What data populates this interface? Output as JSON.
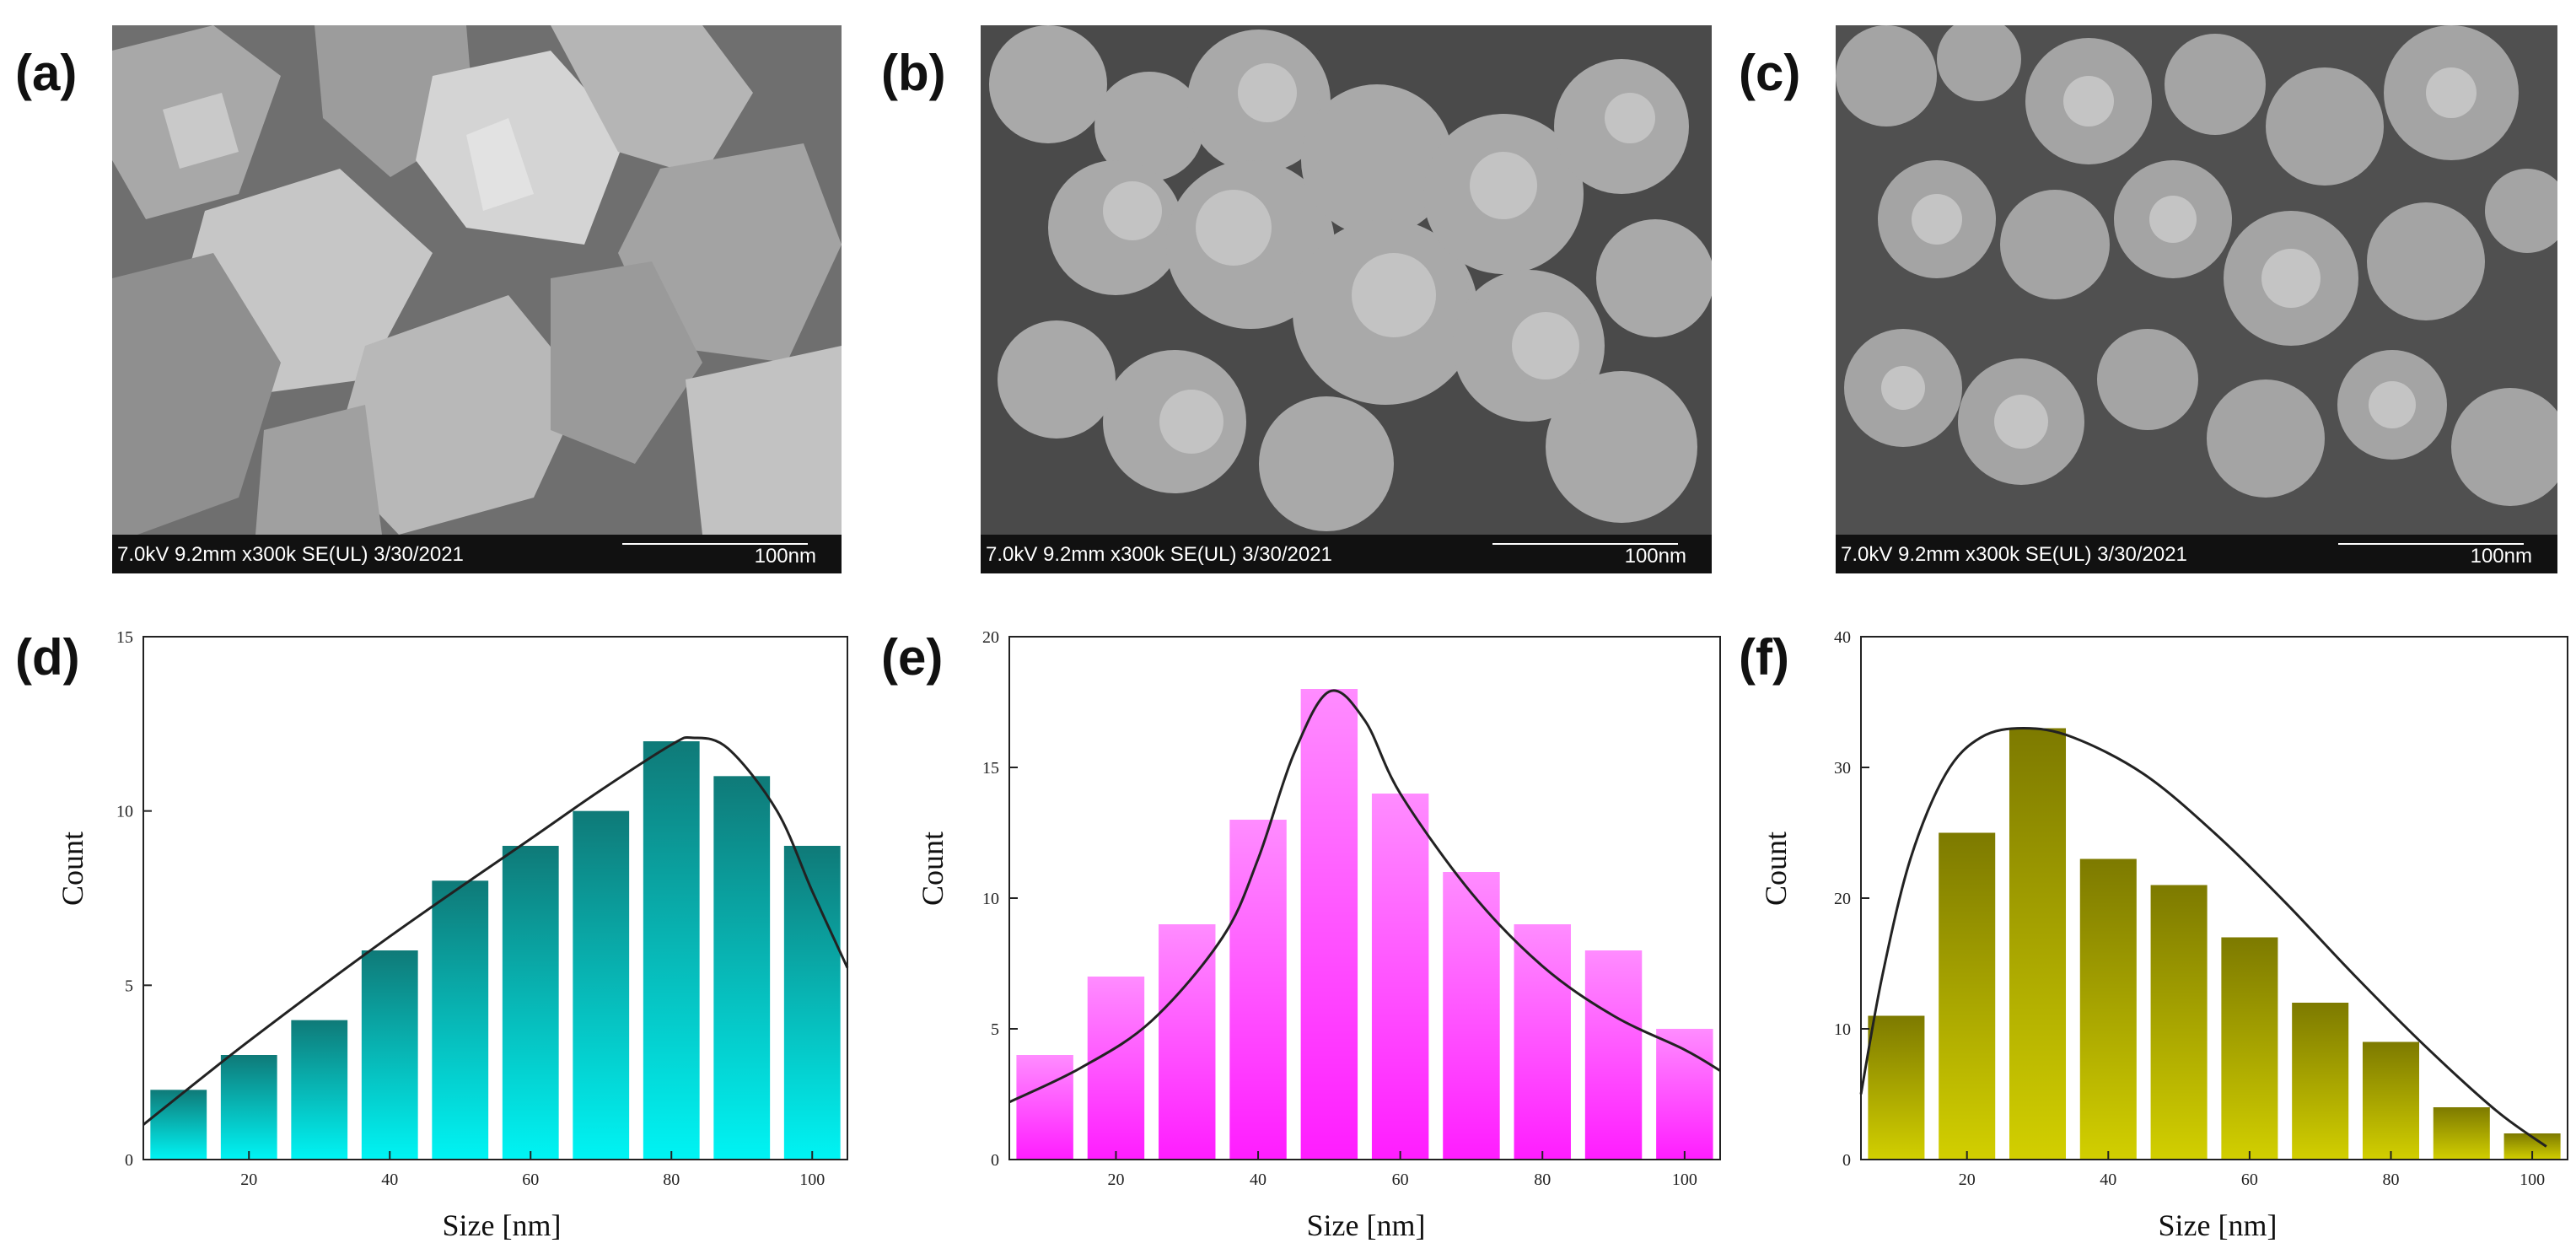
{
  "panels": {
    "a": "(a)",
    "b": "(b)",
    "c": "(c)",
    "d": "(d)",
    "e": "(e)",
    "f": "(f)"
  },
  "sem_images": [
    {
      "info": "7.0kV 9.2mm x300k SE(UL) 3/30/2021",
      "scale": "100nm",
      "morphology": "flakes"
    },
    {
      "info": "7.0kV 9.2mm x300k SE(UL) 3/30/2021",
      "scale": "100nm",
      "morphology": "agglomerates"
    },
    {
      "info": "7.0kV 9.2mm x300k SE(UL) 3/30/2021",
      "scale": "100nm",
      "morphology": "clusters"
    }
  ],
  "chart_data": [
    {
      "type": "bar",
      "x": [
        10,
        20,
        30,
        40,
        50,
        60,
        70,
        80,
        90,
        100
      ],
      "values": [
        2,
        3,
        4,
        6,
        8,
        9,
        10,
        12,
        11,
        9
      ],
      "xlabel": "Size [nm]",
      "ylabel": "Count",
      "xlim": [
        5,
        105
      ],
      "ylim": [
        0,
        15
      ],
      "xticks": [
        20,
        40,
        60,
        80,
        100
      ],
      "yticks": [
        0,
        5,
        10,
        15
      ],
      "bar_color_top": "#0f7a78",
      "bar_color_bottom": "#00f4f4",
      "fit_curve": [
        [
          5,
          1
        ],
        [
          20,
          3.4
        ],
        [
          40,
          6.4
        ],
        [
          60,
          9.2
        ],
        [
          70,
          10.6
        ],
        [
          80,
          11.9
        ],
        [
          83,
          12.1
        ],
        [
          88,
          11.8
        ],
        [
          95,
          10
        ],
        [
          100,
          7.7
        ],
        [
          105,
          5.5
        ]
      ]
    },
    {
      "type": "bar",
      "x": [
        10,
        20,
        30,
        40,
        50,
        60,
        70,
        80,
        90,
        100
      ],
      "values": [
        4,
        7,
        9,
        13,
        18,
        14,
        11,
        9,
        8,
        5
      ],
      "xlabel": "Size [nm]",
      "ylabel": "Count",
      "xlim": [
        5,
        105
      ],
      "ylim": [
        0,
        20
      ],
      "xticks": [
        20,
        40,
        60,
        80,
        100
      ],
      "yticks": [
        0,
        5,
        10,
        15,
        20
      ],
      "bar_color_top": "#ff8cff",
      "bar_color_bottom": "#ff1dff",
      "fit_curve": [
        [
          5,
          2.2
        ],
        [
          15,
          3.5
        ],
        [
          25,
          5.3
        ],
        [
          35,
          8.5
        ],
        [
          40,
          11.5
        ],
        [
          45,
          15.5
        ],
        [
          50,
          17.9
        ],
        [
          55,
          16.8
        ],
        [
          60,
          14
        ],
        [
          70,
          10.2
        ],
        [
          80,
          7.4
        ],
        [
          90,
          5.5
        ],
        [
          100,
          4.2
        ],
        [
          105,
          3.4
        ]
      ]
    },
    {
      "type": "bar",
      "x": [
        10,
        20,
        30,
        40,
        50,
        60,
        70,
        80,
        90,
        100
      ],
      "values": [
        11,
        25,
        33,
        23,
        21,
        17,
        12,
        9,
        4,
        2
      ],
      "xlabel": "Size [nm]",
      "ylabel": "Count",
      "xlim": [
        5,
        105
      ],
      "ylim": [
        0,
        40
      ],
      "xticks": [
        20,
        40,
        60,
        80,
        100
      ],
      "yticks": [
        0,
        10,
        20,
        30,
        40
      ],
      "bar_color_top": "#7d7a00",
      "bar_color_bottom": "#d2cf00",
      "fit_curve": [
        [
          5,
          5
        ],
        [
          8,
          14
        ],
        [
          12,
          23
        ],
        [
          17,
          29.5
        ],
        [
          22,
          32.3
        ],
        [
          28,
          33
        ],
        [
          35,
          32.3
        ],
        [
          45,
          29.5
        ],
        [
          55,
          25
        ],
        [
          65,
          19.7
        ],
        [
          75,
          14
        ],
        [
          85,
          8.6
        ],
        [
          95,
          3.7
        ],
        [
          102,
          1
        ]
      ]
    }
  ]
}
